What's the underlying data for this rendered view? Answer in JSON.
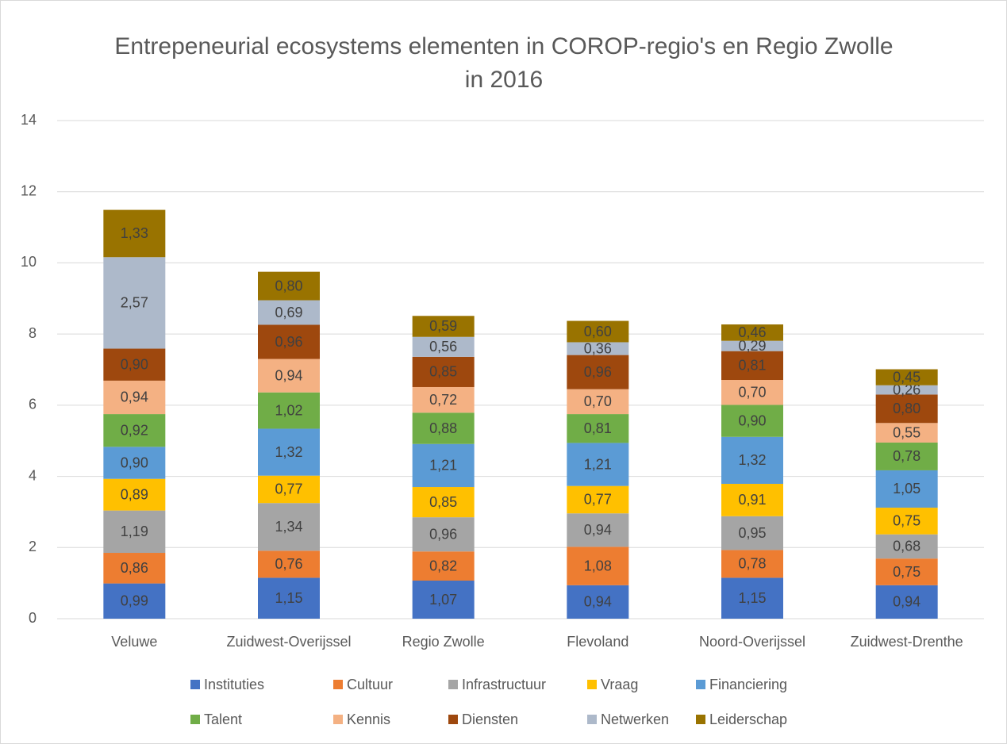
{
  "chart_data": {
    "type": "stacked_bar",
    "title": "Entrepeneurial ecosystems elementen in COROP-regio's en Regio Zwolle in 2016",
    "categories": [
      "Veluwe",
      "Zuidwest-Overijssel",
      "Regio Zwolle",
      "Flevoland",
      "Noord-Overijssel",
      "Zuidwest-Drenthe"
    ],
    "series": [
      {
        "name": "Instituties",
        "color": "#4472c4",
        "values": [
          0.99,
          1.15,
          1.07,
          0.94,
          1.15,
          0.94
        ],
        "value_labels": [
          "0,99",
          "1,15",
          "1,07",
          "0,94",
          "1,15",
          "0,94"
        ]
      },
      {
        "name": "Cultuur",
        "color": "#ed7d31",
        "values": [
          0.86,
          0.76,
          0.82,
          1.08,
          0.78,
          0.75
        ],
        "value_labels": [
          "0,86",
          "0,76",
          "0,82",
          "1,08",
          "0,78",
          "0,75"
        ]
      },
      {
        "name": "Infrastructuur",
        "color": "#a5a5a5",
        "values": [
          1.19,
          1.34,
          0.96,
          0.94,
          0.95,
          0.68
        ],
        "value_labels": [
          "1,19",
          "1,34",
          "0,96",
          "0,94",
          "0,95",
          "0,68"
        ]
      },
      {
        "name": "Vraag",
        "color": "#ffc000",
        "values": [
          0.89,
          0.77,
          0.85,
          0.77,
          0.91,
          0.75
        ],
        "value_labels": [
          "0,89",
          "0,77",
          "0,85",
          "0,77",
          "0,91",
          "0,75"
        ]
      },
      {
        "name": "Financiering",
        "color": "#5b9bd5",
        "values": [
          0.9,
          1.32,
          1.21,
          1.21,
          1.32,
          1.05
        ],
        "value_labels": [
          "0,90",
          "1,32",
          "1,21",
          "1,21",
          "1,32",
          "1,05"
        ]
      },
      {
        "name": "Talent",
        "color": "#70ad47",
        "values": [
          0.92,
          1.02,
          0.88,
          0.81,
          0.9,
          0.78
        ],
        "value_labels": [
          "0,92",
          "1,02",
          "0,88",
          "0,81",
          "0,90",
          "0,78"
        ]
      },
      {
        "name": "Kennis",
        "color": "#f4b183",
        "values": [
          0.94,
          0.94,
          0.72,
          0.7,
          0.7,
          0.55
        ],
        "value_labels": [
          "0,94",
          "0,94",
          "0,72",
          "0,70",
          "0,70",
          "0,55"
        ]
      },
      {
        "name": "Diensten",
        "color": "#9e480e",
        "values": [
          0.9,
          0.96,
          0.85,
          0.96,
          0.81,
          0.8
        ],
        "value_labels": [
          "0,90",
          "0,96",
          "0,85",
          "0,96",
          "0,81",
          "0,80"
        ]
      },
      {
        "name": "Netwerken",
        "color": "#adb9ca",
        "values": [
          2.57,
          0.69,
          0.56,
          0.36,
          0.29,
          0.26
        ],
        "value_labels": [
          "2,57",
          "0,69",
          "0,56",
          "0,36",
          "0,29",
          "0,26"
        ]
      },
      {
        "name": "Leiderschap",
        "color": "#997300",
        "values": [
          1.33,
          0.8,
          0.59,
          0.6,
          0.46,
          0.45
        ],
        "value_labels": [
          "1,33",
          "0,80",
          "0,59",
          "0,60",
          "0,46",
          "0,45"
        ]
      }
    ],
    "ylim": [
      0,
      14
    ],
    "yticks": [
      0,
      2,
      4,
      6,
      8,
      10,
      12,
      14
    ],
    "grid": true,
    "legend": "bottom"
  }
}
